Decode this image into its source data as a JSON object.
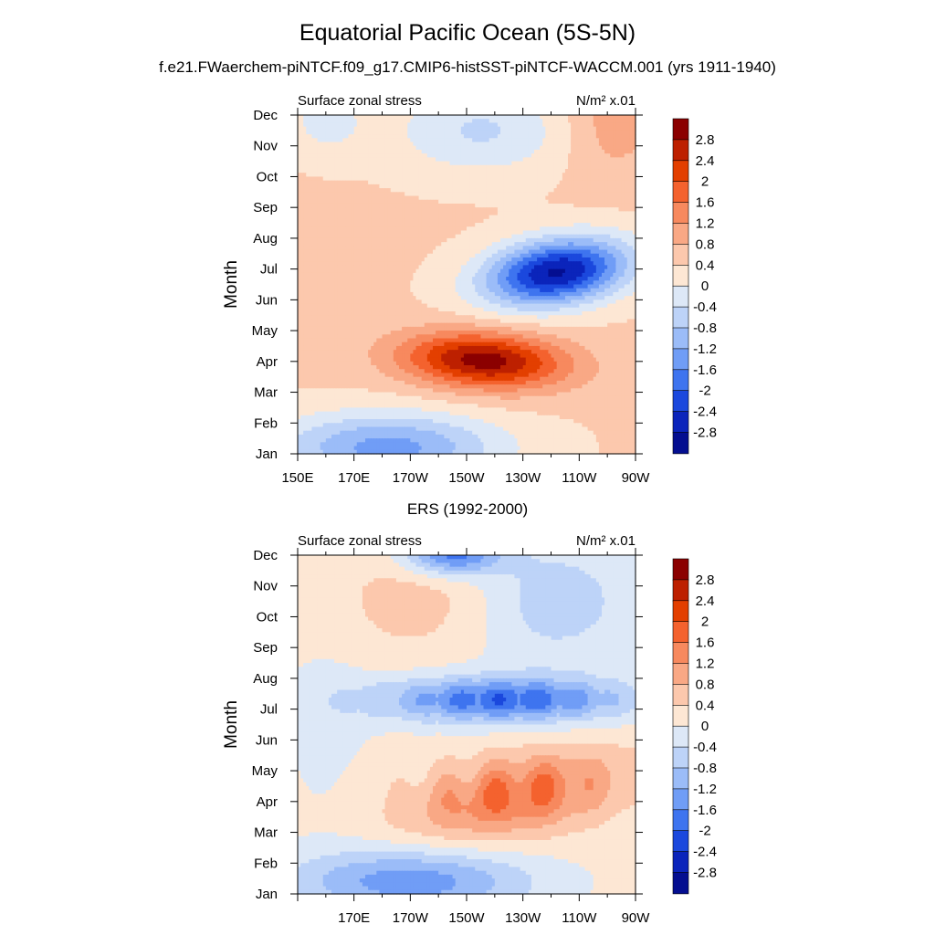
{
  "figure": {
    "title": "Equatorial Pacific Ocean (5S-5N)",
    "subtitle": "f.e21.FWaerchem-piNTCF.f09_g17.CMIP6-histSST-piNTCF-WACCM.001 (yrs 1911-1940)",
    "second_panel_title": "ERS (1992-2000)"
  },
  "colorbar": {
    "levels": [
      "2.8",
      "2.4",
      "2",
      "1.6",
      "1.2",
      "0.8",
      "0.4",
      "0",
      "-0.4",
      "-0.8",
      "-1.2",
      "-1.6",
      "-2",
      "-2.4",
      "-2.8"
    ],
    "colors": [
      "#8b0000",
      "#bd2000",
      "#e33f00",
      "#f4622e",
      "#f7895e",
      "#f9a885",
      "#fcc8ad",
      "#fde7d4",
      "#dde8f7",
      "#bdd3f8",
      "#9bbcf8",
      "#709df6",
      "#3e74ef",
      "#1b48dd",
      "#0b24bb",
      "#040e90"
    ]
  },
  "chart_data": [
    {
      "type": "heatmap",
      "panel": "model",
      "left_label": "Surface zonal stress",
      "units_label": "N/m² x.01",
      "ylabel": "Month",
      "xlabel": "",
      "x_ticks": [
        "150E",
        "170E",
        "170W",
        "150W",
        "130W",
        "110W",
        "90W"
      ],
      "y_ticks": [
        "Dec",
        "Nov",
        "Oct",
        "Sep",
        "Aug",
        "Jul",
        "Jun",
        "May",
        "Apr",
        "Mar",
        "Feb",
        "Jan"
      ],
      "xlim": [
        150,
        270
      ],
      "ylim": [
        "Jan",
        "Dec"
      ],
      "features": [
        {
          "kind": "max",
          "lon": 214,
          "month": "Apr",
          "value": 2.8
        },
        {
          "kind": "min",
          "lon": 243,
          "month": "Jul",
          "value": -2.8
        },
        {
          "kind": "min",
          "lon": 175,
          "month": "Jan",
          "value": -1.2
        },
        {
          "kind": "max",
          "lon": 260,
          "month": "Nov",
          "value": 1.0
        }
      ]
    },
    {
      "type": "heatmap",
      "panel": "ers",
      "left_label": "Surface zonal stress",
      "units_label": "N/m² x.01",
      "ylabel": "Month",
      "xlabel": "",
      "x_ticks": [
        "170E",
        "170W",
        "150W",
        "130W",
        "110W",
        "90W"
      ],
      "y_ticks": [
        "Dec",
        "Nov",
        "Oct",
        "Sep",
        "Aug",
        "Jul",
        "Jun",
        "May",
        "Apr",
        "Mar",
        "Feb",
        "Jan"
      ],
      "xlim": [
        150,
        270
      ],
      "ylim": [
        "Jan",
        "Dec"
      ],
      "features": [
        {
          "kind": "max",
          "lon": 228,
          "month": "Apr",
          "value": 1.7
        },
        {
          "kind": "min",
          "lon": 220,
          "month": "Jul",
          "value": -1.8
        },
        {
          "kind": "min",
          "lon": 205,
          "month": "Dec",
          "value": -2.0
        },
        {
          "kind": "min",
          "lon": 190,
          "month": "Jan",
          "value": -1.6
        }
      ]
    }
  ]
}
